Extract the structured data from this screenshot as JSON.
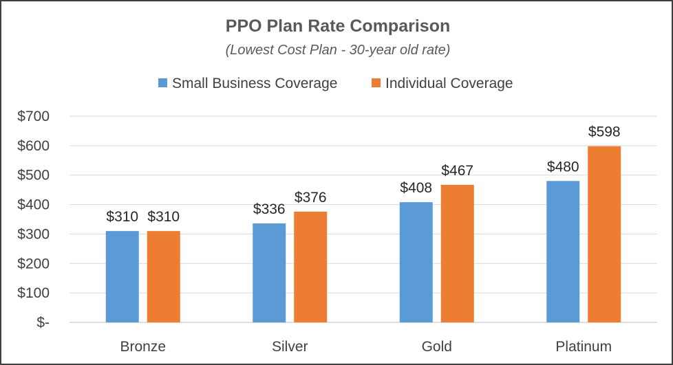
{
  "chart_data": {
    "type": "bar",
    "title": "PPO Plan Rate Comparison",
    "subtitle": "(Lowest Cost Plan - 30-year old rate)",
    "categories": [
      "Bronze",
      "Silver",
      "Gold",
      "Platinum"
    ],
    "series": [
      {
        "name": "Small Business Coverage",
        "color": "#5b9bd5",
        "values": [
          310,
          336,
          408,
          480
        ],
        "labels": [
          "$310",
          "$336",
          "$408",
          "$480"
        ]
      },
      {
        "name": "Individual Coverage",
        "color": "#ed7d31",
        "values": [
          310,
          376,
          467,
          598
        ],
        "labels": [
          "$310",
          "$376",
          "$467",
          "$598"
        ]
      }
    ],
    "ylim": [
      0,
      700
    ],
    "yticks": [
      0,
      100,
      200,
      300,
      400,
      500,
      600,
      700
    ],
    "ytick_labels": [
      "$-",
      "$100",
      "$200",
      "$300",
      "$400",
      "$500",
      "$600",
      "$700"
    ],
    "xlabel": "",
    "ylabel": "",
    "grid": true,
    "legend_position": "top"
  }
}
